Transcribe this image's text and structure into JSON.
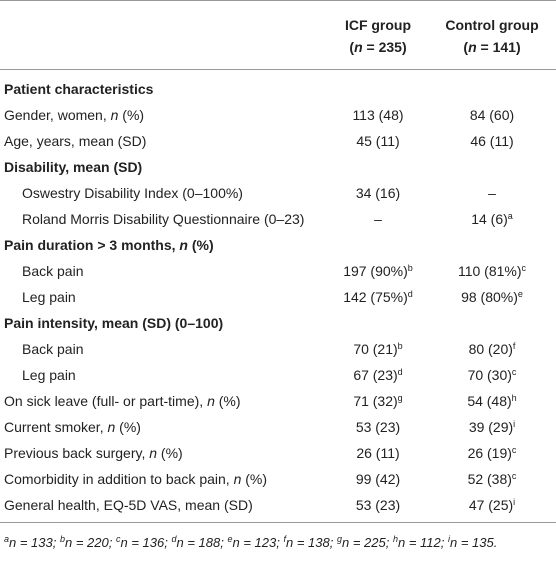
{
  "table": {
    "header": {
      "icf": [
        [
          "ICF group"
        ],
        [
          "(",
          "n",
          " = 235)"
        ]
      ],
      "control": [
        [
          "Control group"
        ],
        [
          "(",
          "n",
          " = 141)"
        ]
      ]
    },
    "rows": [
      {
        "heading": [
          "Patient characteristics"
        ]
      },
      {
        "label": [
          "Gender, women, ",
          "n",
          " (%)"
        ],
        "icf": "113 (48)",
        "control": "84 (60)"
      },
      {
        "label": [
          "Age, years, mean (SD)"
        ],
        "icf": "45 (11)",
        "control": "46 (11)"
      },
      {
        "heading": [
          "Disability, mean (SD)"
        ]
      },
      {
        "sublabel": [
          "Oswestry Disability Index (0–100%)"
        ],
        "icf": "34 (16)",
        "control": "–"
      },
      {
        "sublabel": [
          "Roland Morris Disability Questionnaire (0–23)"
        ],
        "icf": "–",
        "control": {
          "text": "14 (6)",
          "sup": "a"
        }
      },
      {
        "heading": [
          "Pain duration > 3 months, ",
          "n",
          " (%)"
        ]
      },
      {
        "sublabel": [
          "Back pain"
        ],
        "icf": {
          "text": "197 (90%)",
          "sup": "b"
        },
        "control": {
          "text": "110 (81%)",
          "sup": "c"
        }
      },
      {
        "sublabel": [
          "Leg pain"
        ],
        "icf": {
          "text": "142 (75%)",
          "sup": "d"
        },
        "control": {
          "text": "98 (80%)",
          "sup": "e"
        }
      },
      {
        "heading": [
          "Pain intensity, mean (SD) (0–100)"
        ]
      },
      {
        "sublabel": [
          "Back pain"
        ],
        "icf": {
          "text": "70 (21)",
          "sup": "b"
        },
        "control": {
          "text": "80 (20)",
          "sup": "f"
        }
      },
      {
        "sublabel": [
          "Leg pain"
        ],
        "icf": {
          "text": "67 (23)",
          "sup": "d"
        },
        "control": {
          "text": "70 (30)",
          "sup": "c"
        }
      },
      {
        "label": [
          "On sick leave (full- or part-time), ",
          "n",
          " (%)"
        ],
        "icf": {
          "text": "71 (32)",
          "sup": "g"
        },
        "control": {
          "text": "54 (48)",
          "sup": "h"
        }
      },
      {
        "label": [
          "Current smoker, ",
          "n",
          " (%)"
        ],
        "icf": "53 (23)",
        "control": {
          "text": "39 (29)",
          "sup": "i"
        }
      },
      {
        "label": [
          "Previous back surgery, ",
          "n",
          " (%)"
        ],
        "icf": "26 (11)",
        "control": {
          "text": "26 (19)",
          "sup": "c"
        }
      },
      {
        "label": [
          "Comorbidity in addition to back pain, ",
          "n",
          " (%)"
        ],
        "icf": "99 (42)",
        "control": {
          "text": "52 (38)",
          "sup": "c"
        }
      },
      {
        "label": [
          "General health, EQ-5D VAS, mean (SD)"
        ],
        "icf": "53 (23)",
        "control": {
          "text": "47 (25)",
          "sup": "i"
        }
      }
    ],
    "footnotes": [
      {
        "sup": "a",
        "text": "n = 133;"
      },
      {
        "sup": "b",
        "text": "n = 220;"
      },
      {
        "sup": "c",
        "text": "n = 136;"
      },
      {
        "sup": "d",
        "text": "n = 188;"
      },
      {
        "sup": "e",
        "text": "n = 123;"
      },
      {
        "sup": "f",
        "text": "n = 138;"
      },
      {
        "sup": "g",
        "text": "n = 225;"
      },
      {
        "sup": "h",
        "text": "n = 112;"
      },
      {
        "sup": "i",
        "text": "n = 135."
      }
    ]
  }
}
